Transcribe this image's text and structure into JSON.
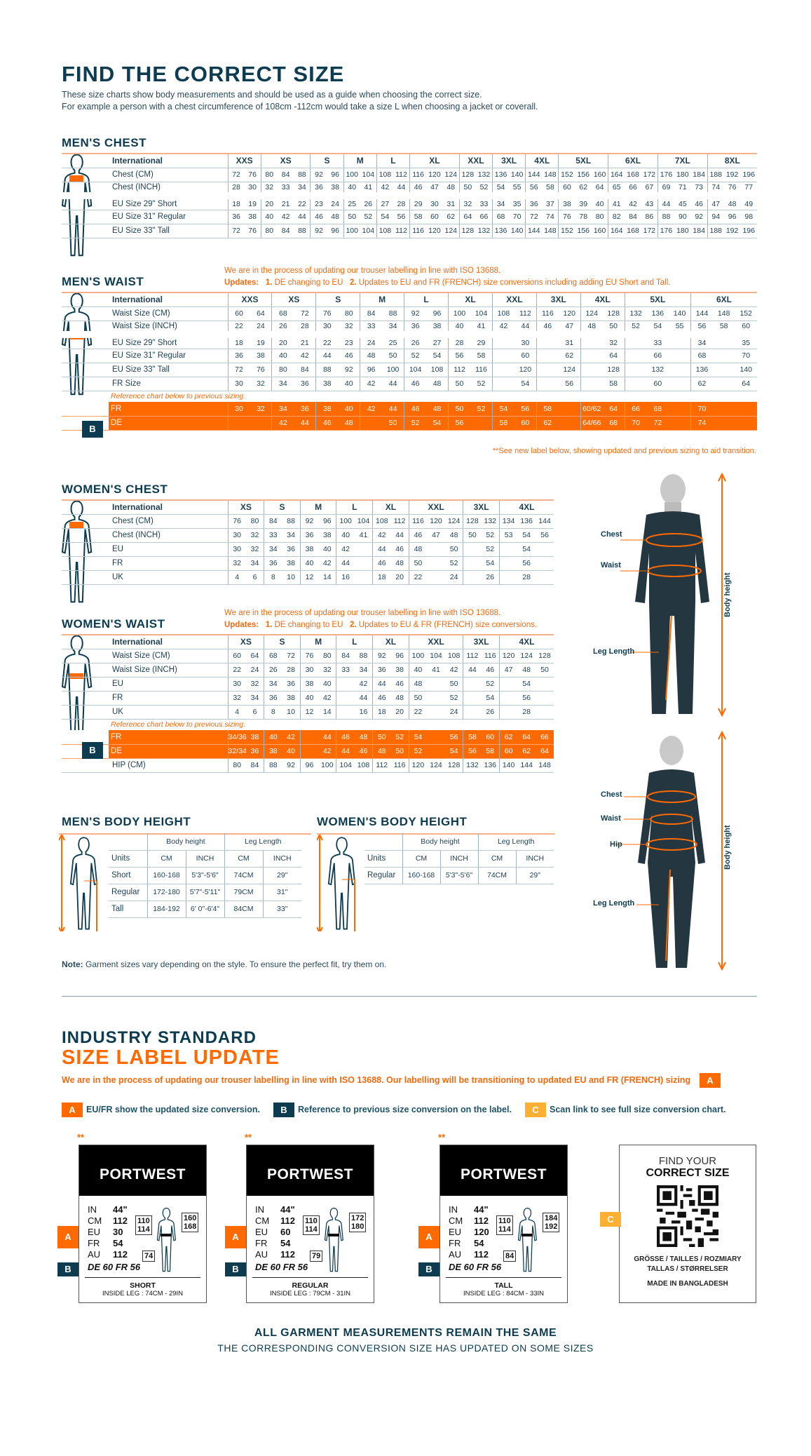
{
  "header": {
    "title": "FIND THE CORRECT SIZE",
    "line1": "These size charts show body measurements and should be used as a guide when choosing the correct size.",
    "line2": "For example a person with a chest circumference of 108cm -112cm would take a size L when choosing a jacket or coverall."
  },
  "colors": {
    "navy": "#0d3b4f",
    "orange": "#ff6a00",
    "yellow": "#fbb034"
  },
  "notes": {
    "iso": "We are in the process of updating our trouser labelling in line with ISO 13688.",
    "updates_label": "Updates:",
    "men_u1_num": "1.",
    "men_u1": "DE changing to EU",
    "men_u2_num": "2.",
    "men_u2": "Updates to EU and FR (FRENCH) size conversions including adding EU Short and Tall.",
    "women_u2": "Updates to EU & FR (FRENCH) size conversions.",
    "reference": "Reference chart below to previous sizing.",
    "see_label": "**See new label below, showing updated and previous sizing to aid transition.",
    "badge_b": "B"
  },
  "mens_chest": {
    "title": "MEN'S CHEST",
    "groups": [
      [
        "XXS",
        2
      ],
      [
        "XS",
        3
      ],
      [
        "S",
        2
      ],
      [
        "M",
        2
      ],
      [
        "L",
        2
      ],
      [
        "XL",
        3
      ],
      [
        "XXL",
        2
      ],
      [
        "3XL",
        2
      ],
      [
        "4XL",
        2
      ],
      [
        "5XL",
        3
      ],
      [
        "6XL",
        3
      ],
      [
        "7XL",
        3
      ],
      [
        "8XL",
        3
      ]
    ],
    "header_label": "International",
    "rows": [
      {
        "label": "Chest (CM)",
        "values": [
          "72",
          "76",
          "80",
          "84",
          "88",
          "92",
          "96",
          "100",
          "104",
          "108",
          "112",
          "116",
          "120",
          "124",
          "128",
          "132",
          "136",
          "140",
          "144",
          "148",
          "152",
          "156",
          "160",
          "164",
          "168",
          "172",
          "176",
          "180",
          "184",
          "188",
          "192",
          "196"
        ]
      },
      {
        "label": "Chest (INCH)",
        "values": [
          "28",
          "30",
          "32",
          "33",
          "34",
          "36",
          "38",
          "40",
          "41",
          "42",
          "44",
          "46",
          "47",
          "48",
          "50",
          "52",
          "54",
          "55",
          "56",
          "58",
          "60",
          "62",
          "64",
          "65",
          "66",
          "67",
          "69",
          "71",
          "73",
          "74",
          "76",
          "77"
        ]
      },
      {
        "label": "EU Size 29\" Short",
        "values": [
          "18",
          "19",
          "20",
          "21",
          "22",
          "23",
          "24",
          "25",
          "26",
          "27",
          "28",
          "29",
          "30",
          "31",
          "32",
          "33",
          "34",
          "35",
          "36",
          "37",
          "38",
          "39",
          "40",
          "41",
          "42",
          "43",
          "44",
          "45",
          "46",
          "47",
          "48",
          "49"
        ]
      },
      {
        "label": "EU Size 31\" Regular",
        "values": [
          "36",
          "38",
          "40",
          "42",
          "44",
          "46",
          "48",
          "50",
          "52",
          "54",
          "56",
          "58",
          "60",
          "62",
          "64",
          "66",
          "68",
          "70",
          "72",
          "74",
          "76",
          "78",
          "80",
          "82",
          "84",
          "86",
          "88",
          "90",
          "92",
          "94",
          "96",
          "98"
        ]
      },
      {
        "label": "EU Size 33\" Tall",
        "values": [
          "72",
          "76",
          "80",
          "84",
          "88",
          "92",
          "96",
          "100",
          "104",
          "108",
          "112",
          "116",
          "120",
          "124",
          "128",
          "132",
          "136",
          "140",
          "144",
          "148",
          "152",
          "156",
          "160",
          "164",
          "168",
          "172",
          "176",
          "180",
          "184",
          "188",
          "192",
          "196"
        ]
      }
    ]
  },
  "mens_waist": {
    "title": "MEN'S WAIST",
    "groups": [
      [
        "XXS",
        2
      ],
      [
        "XS",
        2
      ],
      [
        "S",
        2
      ],
      [
        "M",
        2
      ],
      [
        "L",
        2
      ],
      [
        "XL",
        2
      ],
      [
        "XXL",
        2
      ],
      [
        "3XL",
        2
      ],
      [
        "4XL",
        2
      ],
      [
        "5XL",
        3
      ],
      [
        "6XL",
        3
      ]
    ],
    "header_label": "International",
    "rows": [
      {
        "label": "Waist Size (CM)",
        "values": [
          "60",
          "64",
          "68",
          "72",
          "76",
          "80",
          "84",
          "88",
          "92",
          "96",
          "100",
          "104",
          "108",
          "112",
          "116",
          "120",
          "124",
          "128",
          "132",
          "136",
          "140",
          "144",
          "148",
          "152"
        ]
      },
      {
        "label": "Waist Size (INCH)",
        "values": [
          "22",
          "24",
          "26",
          "28",
          "30",
          "32",
          "33",
          "34",
          "36",
          "38",
          "40",
          "41",
          "42",
          "44",
          "46",
          "47",
          "48",
          "50",
          "52",
          "54",
          "55",
          "56",
          "58",
          "60"
        ]
      },
      {
        "label": "EU Size 29\" Short",
        "values": [
          "18",
          "19",
          "20",
          "21",
          "22",
          "23",
          "24",
          "25",
          "26",
          "27",
          "28",
          "29",
          "",
          "30",
          "",
          "31",
          "",
          "32",
          "",
          "33",
          "",
          "34",
          "",
          "35"
        ]
      },
      {
        "label": "EU Size 31\" Regular",
        "values": [
          "36",
          "38",
          "40",
          "42",
          "44",
          "46",
          "48",
          "50",
          "52",
          "54",
          "56",
          "58",
          "",
          "60",
          "",
          "62",
          "",
          "64",
          "",
          "66",
          "",
          "68",
          "",
          "70"
        ]
      },
      {
        "label": "EU Size 33\" Tall",
        "values": [
          "72",
          "76",
          "80",
          "84",
          "88",
          "92",
          "96",
          "100",
          "104",
          "108",
          "112",
          "116",
          "",
          "120",
          "",
          "124",
          "",
          "128",
          "",
          "132",
          "",
          "136",
          "",
          "140"
        ]
      },
      {
        "label": "FR Size",
        "values": [
          "30",
          "32",
          "34",
          "36",
          "38",
          "40",
          "42",
          "44",
          "46",
          "48",
          "50",
          "52",
          "",
          "54",
          "",
          "56",
          "",
          "58",
          "",
          "60",
          "",
          "62",
          "",
          "64"
        ]
      }
    ],
    "previous": [
      {
        "label": "FR",
        "values": [
          "30",
          "32",
          "34",
          "36",
          "38",
          "40",
          "42",
          "44",
          "46",
          "48",
          "50",
          "52",
          "54",
          "56",
          "58",
          "",
          "60/62",
          "64",
          "66",
          "68",
          "",
          "70",
          "",
          ""
        ]
      },
      {
        "label": "DE",
        "values": [
          "",
          "",
          "42",
          "44",
          "46",
          "48",
          "",
          "50",
          "52",
          "54",
          "56",
          "",
          "58",
          "60",
          "62",
          "",
          "64/66",
          "68",
          "70",
          "72",
          "",
          "74",
          "",
          ""
        ]
      }
    ]
  },
  "womens_chest": {
    "title": "WOMEN'S CHEST",
    "groups": [
      [
        "XS",
        2
      ],
      [
        "S",
        2
      ],
      [
        "M",
        2
      ],
      [
        "L",
        2
      ],
      [
        "XL",
        2
      ],
      [
        "XXL",
        3
      ],
      [
        "3XL",
        2
      ],
      [
        "4XL",
        3
      ]
    ],
    "header_label": "International",
    "rows": [
      {
        "label": "Chest (CM)",
        "values": [
          "76",
          "80",
          "84",
          "88",
          "92",
          "96",
          "100",
          "104",
          "108",
          "112",
          "116",
          "120",
          "124",
          "128",
          "132",
          "134",
          "136",
          "144"
        ]
      },
      {
        "label": "Chest (INCH)",
        "values": [
          "30",
          "32",
          "33",
          "34",
          "36",
          "38",
          "40",
          "41",
          "42",
          "44",
          "46",
          "47",
          "48",
          "50",
          "52",
          "53",
          "54",
          "56"
        ]
      },
      {
        "label": "EU",
        "values": [
          "30",
          "32",
          "34",
          "36",
          "38",
          "40",
          "42",
          "",
          "44",
          "46",
          "48",
          "",
          "50",
          "",
          "52",
          "",
          "54",
          ""
        ]
      },
      {
        "label": "FR",
        "values": [
          "32",
          "34",
          "36",
          "38",
          "40",
          "42",
          "44",
          "",
          "46",
          "48",
          "50",
          "",
          "52",
          "",
          "54",
          "",
          "56",
          ""
        ]
      },
      {
        "label": "UK",
        "values": [
          "4",
          "6",
          "8",
          "10",
          "12",
          "14",
          "16",
          "",
          "18",
          "20",
          "22",
          "",
          "24",
          "",
          "26",
          "",
          "28",
          ""
        ]
      }
    ]
  },
  "womens_waist": {
    "title": "WOMEN'S WAIST",
    "groups": [
      [
        "XS",
        2
      ],
      [
        "S",
        2
      ],
      [
        "M",
        2
      ],
      [
        "L",
        2
      ],
      [
        "XL",
        2
      ],
      [
        "XXL",
        3
      ],
      [
        "3XL",
        2
      ],
      [
        "4XL",
        3
      ]
    ],
    "header_label": "International",
    "rows": [
      {
        "label": "Waist Size (CM)",
        "values": [
          "60",
          "64",
          "68",
          "72",
          "76",
          "80",
          "84",
          "88",
          "92",
          "96",
          "100",
          "104",
          "108",
          "112",
          "116",
          "120",
          "124",
          "128"
        ]
      },
      {
        "label": "Waist Size (INCH)",
        "values": [
          "22",
          "24",
          "26",
          "28",
          "30",
          "32",
          "33",
          "34",
          "36",
          "38",
          "40",
          "41",
          "42",
          "44",
          "46",
          "47",
          "48",
          "50"
        ]
      },
      {
        "label": "EU",
        "values": [
          "30",
          "32",
          "34",
          "36",
          "38",
          "40",
          "",
          "42",
          "44",
          "46",
          "48",
          "",
          "50",
          "",
          "52",
          "",
          "54",
          ""
        ]
      },
      {
        "label": "FR",
        "values": [
          "32",
          "34",
          "36",
          "38",
          "40",
          "42",
          "",
          "44",
          "46",
          "48",
          "50",
          "",
          "52",
          "",
          "54",
          "",
          "56",
          ""
        ]
      },
      {
        "label": "UK",
        "values": [
          "4",
          "6",
          "8",
          "10",
          "12",
          "14",
          "",
          "16",
          "18",
          "20",
          "22",
          "",
          "24",
          "",
          "26",
          "",
          "28",
          ""
        ]
      }
    ],
    "previous": [
      {
        "label": "FR",
        "values": [
          "34/36",
          "38",
          "40",
          "42",
          "",
          "44",
          "46",
          "48",
          "50",
          "52",
          "54",
          "",
          "56",
          "58",
          "60",
          "62",
          "64",
          "66"
        ]
      },
      {
        "label": "DE",
        "values": [
          "32/34",
          "36",
          "38",
          "40",
          "",
          "42",
          "44",
          "46",
          "48",
          "50",
          "52",
          "",
          "54",
          "56",
          "58",
          "60",
          "62",
          "64"
        ]
      }
    ],
    "after": [
      {
        "label": "HIP (CM)",
        "values": [
          "80",
          "84",
          "88",
          "92",
          "96",
          "100",
          "104",
          "108",
          "112",
          "116",
          "120",
          "124",
          "128",
          "132",
          "136",
          "140",
          "144",
          "148"
        ]
      }
    ]
  },
  "mens_height": {
    "title": "MEN'S BODY HEIGHT",
    "col_groups": [
      "Body height",
      "Leg Length"
    ],
    "units_row": [
      "Units",
      "CM",
      "INCH",
      "CM",
      "INCH"
    ],
    "rows": [
      [
        "Short",
        "160-168",
        "5'3\"-5'6\"",
        "74CM",
        "29\""
      ],
      [
        "Regular",
        "172-180",
        "5'7\"-5'11\"",
        "79CM",
        "31\""
      ],
      [
        "Tall",
        "184-192",
        "6' 0\"-6'4\"",
        "84CM",
        "33\""
      ]
    ]
  },
  "womens_height": {
    "title": "WOMEN'S BODY HEIGHT",
    "col_groups": [
      "Body height",
      "Leg Length"
    ],
    "units_row": [
      "Units",
      "CM",
      "INCH",
      "CM",
      "INCH"
    ],
    "rows": [
      [
        "Regular",
        "160-168",
        "5'3\"-5'6\"",
        "74CM",
        "29\""
      ]
    ]
  },
  "figures": {
    "chest": "Chest",
    "waist": "Waist",
    "hip": "Hip",
    "leg": "Leg Length",
    "height": "Body height"
  },
  "garment_note": {
    "bold": "Note:",
    "text": " Garment sizes vary depending on the style. To ensure the perfect fit, try them on."
  },
  "label_update": {
    "title1": "INDUSTRY STANDARD",
    "title2": "SIZE LABEL UPDATE",
    "intro": "We are in the process of updating our trouser labelling in line with ISO 13688. Our labelling will be transitioning to updated EU and FR (FRENCH) sizing",
    "legend": [
      {
        "badge": "A",
        "text": "EU/FR show the updated size conversion."
      },
      {
        "badge": "B",
        "text": "Reference to previous size conversion on the label."
      },
      {
        "badge": "C",
        "text": "Scan link to see full size conversion chart."
      }
    ],
    "cards": [
      {
        "mark": "**",
        "brand": "PORTWEST",
        "meas": [
          [
            "IN",
            "44\""
          ],
          [
            "CM",
            "112"
          ],
          [
            "EU",
            "30"
          ],
          [
            "FR",
            "54"
          ],
          [
            "AU",
            "112"
          ]
        ],
        "prev": "DE 60 FR 56",
        "waist_box": "110\n114",
        "height_box": "160\n168",
        "leg_box": "74",
        "fit": "SHORT",
        "inside": "INSIDE LEG : 74CM - 29IN"
      },
      {
        "mark": "**",
        "brand": "PORTWEST",
        "meas": [
          [
            "IN",
            "44\""
          ],
          [
            "CM",
            "112"
          ],
          [
            "EU",
            "60"
          ],
          [
            "FR",
            "54"
          ],
          [
            "AU",
            "112"
          ]
        ],
        "prev": "DE 60 FR 56",
        "waist_box": "110\n114",
        "height_box": "172\n180",
        "leg_box": "79",
        "fit": "REGULAR",
        "inside": "INSIDE LEG : 79CM - 31IN"
      },
      {
        "mark": "**",
        "brand": "PORTWEST",
        "meas": [
          [
            "IN",
            "44\""
          ],
          [
            "CM",
            "112"
          ],
          [
            "EU",
            "120"
          ],
          [
            "FR",
            "54"
          ],
          [
            "AU",
            "112"
          ]
        ],
        "prev": "DE 60 FR 56",
        "waist_box": "110\n114",
        "height_box": "184\n192",
        "leg_box": "84",
        "fit": "TALL",
        "inside": "INSIDE LEG : 84CM - 33IN"
      }
    ],
    "qr": {
      "line1": "FIND YOUR",
      "line2": "CORRECT SIZE",
      "langs1": "GRÖSSE / TAILLES / ROZMIARY",
      "langs2": "TALLAS / STØRRELSER",
      "made": "MADE IN BANGLADESH"
    }
  },
  "footer": {
    "line1": "ALL GARMENT MEASUREMENTS REMAIN THE SAME",
    "line2": "THE CORRESPONDING CONVERSION SIZE HAS UPDATED ON SOME SIZES"
  }
}
